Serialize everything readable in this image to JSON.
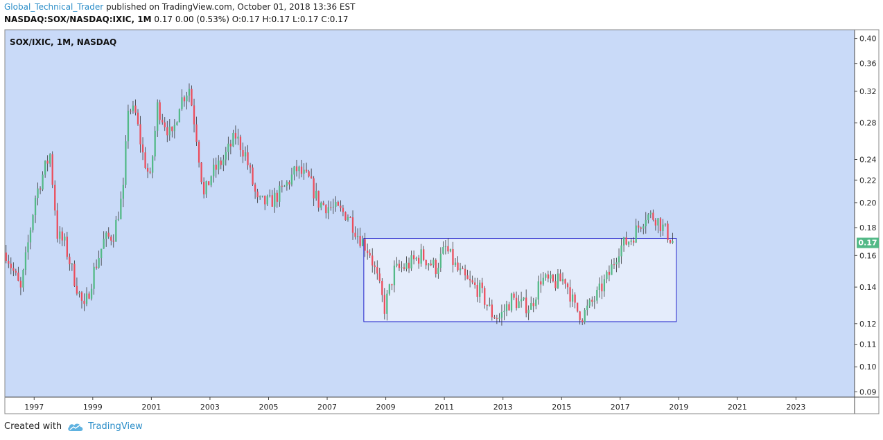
{
  "header": {
    "author": "Global_Technical_Trader",
    "published": " published on TradingView.com, October 01, 2018 13:36 EST",
    "symbol": "NASDAQ:SOX/NASDAQ:IXIC, 1M",
    "quote": "0.17 0.00 (0.53%) O:0.17 H:0.17 L:0.17 C:0.17"
  },
  "footer": {
    "created_with": "Created with",
    "brand": "TradingView"
  },
  "colors": {
    "background": "#c9daf8",
    "up": "#53b987",
    "down": "#eb4d5c",
    "box_border": "#2222cc",
    "box_fill": "#e4ecfb",
    "price_label": "#53b987"
  },
  "chart_data": {
    "type": "candlestick",
    "title": "SOX/IXIC, 1M, NASDAQ",
    "interval": "1M",
    "scale": "log",
    "y_ticks": [
      "0.40",
      "0.36",
      "0.32",
      "0.28",
      "0.24",
      "0.22",
      "0.20",
      "0.18",
      "0.16",
      "0.14",
      "0.12",
      "0.11",
      "0.10",
      "0.09"
    ],
    "x_ticks": [
      "1997",
      "1999",
      "2001",
      "2003",
      "2005",
      "2007",
      "2009",
      "2011",
      "2013",
      "2015",
      "2017",
      "2019",
      "2021",
      "2023"
    ],
    "last_price": "0.17",
    "x_range": [
      "1996-01",
      "2024-12"
    ],
    "y_range": [
      0.088,
      0.415
    ],
    "series": [
      {
        "date": "1996-01",
        "close": 0.162
      },
      {
        "date": "1996-07",
        "close": 0.138
      },
      {
        "date": "1997-01",
        "close": 0.205
      },
      {
        "date": "1997-05",
        "close": 0.232
      },
      {
        "date": "1997-07",
        "close": 0.245
      },
      {
        "date": "1997-10",
        "close": 0.175
      },
      {
        "date": "1998-01",
        "close": 0.168
      },
      {
        "date": "1998-05",
        "close": 0.145
      },
      {
        "date": "1998-09",
        "close": 0.127
      },
      {
        "date": "1999-01",
        "close": 0.15
      },
      {
        "date": "1999-05",
        "close": 0.17
      },
      {
        "date": "1999-09",
        "close": 0.175
      },
      {
        "date": "2000-01",
        "close": 0.21
      },
      {
        "date": "2000-03",
        "close": 0.3
      },
      {
        "date": "2000-06",
        "close": 0.29
      },
      {
        "date": "2000-09",
        "close": 0.245
      },
      {
        "date": "2000-12",
        "close": 0.22
      },
      {
        "date": "2001-03",
        "close": 0.3
      },
      {
        "date": "2001-06",
        "close": 0.28
      },
      {
        "date": "2001-09",
        "close": 0.262
      },
      {
        "date": "2001-12",
        "close": 0.305
      },
      {
        "date": "2002-04",
        "close": 0.325
      },
      {
        "date": "2002-07",
        "close": 0.265
      },
      {
        "date": "2002-10",
        "close": 0.205
      },
      {
        "date": "2003-01",
        "close": 0.225
      },
      {
        "date": "2003-06",
        "close": 0.24
      },
      {
        "date": "2003-11",
        "close": 0.265
      },
      {
        "date": "2004-03",
        "close": 0.245
      },
      {
        "date": "2004-08",
        "close": 0.2
      },
      {
        "date": "2005-01",
        "close": 0.2
      },
      {
        "date": "2005-06",
        "close": 0.21
      },
      {
        "date": "2005-12",
        "close": 0.23
      },
      {
        "date": "2006-05",
        "close": 0.22
      },
      {
        "date": "2006-09",
        "close": 0.2
      },
      {
        "date": "2007-03",
        "close": 0.195
      },
      {
        "date": "2007-09",
        "close": 0.19
      },
      {
        "date": "2008-01",
        "close": 0.175
      },
      {
        "date": "2008-06",
        "close": 0.162
      },
      {
        "date": "2008-09",
        "close": 0.145
      },
      {
        "date": "2008-12",
        "close": 0.128
      },
      {
        "date": "2009-04",
        "close": 0.15
      },
      {
        "date": "2009-09",
        "close": 0.153
      },
      {
        "date": "2010-03",
        "close": 0.16
      },
      {
        "date": "2010-09",
        "close": 0.152
      },
      {
        "date": "2011-01",
        "close": 0.165
      },
      {
        "date": "2011-06",
        "close": 0.15
      },
      {
        "date": "2011-10",
        "close": 0.143
      },
      {
        "date": "2012-03",
        "close": 0.138
      },
      {
        "date": "2012-08",
        "close": 0.125
      },
      {
        "date": "2012-11",
        "close": 0.123
      },
      {
        "date": "2013-04",
        "close": 0.133
      },
      {
        "date": "2013-08",
        "close": 0.13
      },
      {
        "date": "2013-12",
        "close": 0.129
      },
      {
        "date": "2014-04",
        "close": 0.145
      },
      {
        "date": "2014-09",
        "close": 0.142
      },
      {
        "date": "2015-02",
        "close": 0.145
      },
      {
        "date": "2015-06",
        "close": 0.128
      },
      {
        "date": "2015-09",
        "close": 0.124
      },
      {
        "date": "2016-03",
        "close": 0.135
      },
      {
        "date": "2016-08",
        "close": 0.148
      },
      {
        "date": "2016-12",
        "close": 0.165
      },
      {
        "date": "2017-05",
        "close": 0.172
      },
      {
        "date": "2017-11",
        "close": 0.19
      },
      {
        "date": "2018-03",
        "close": 0.188
      },
      {
        "date": "2018-06",
        "close": 0.18
      },
      {
        "date": "2018-10",
        "close": 0.17
      }
    ],
    "annotations": [
      {
        "type": "rectangle",
        "x_from": "2008-04",
        "x_to": "2018-12",
        "y_from": 0.121,
        "y_to": 0.172
      }
    ]
  }
}
